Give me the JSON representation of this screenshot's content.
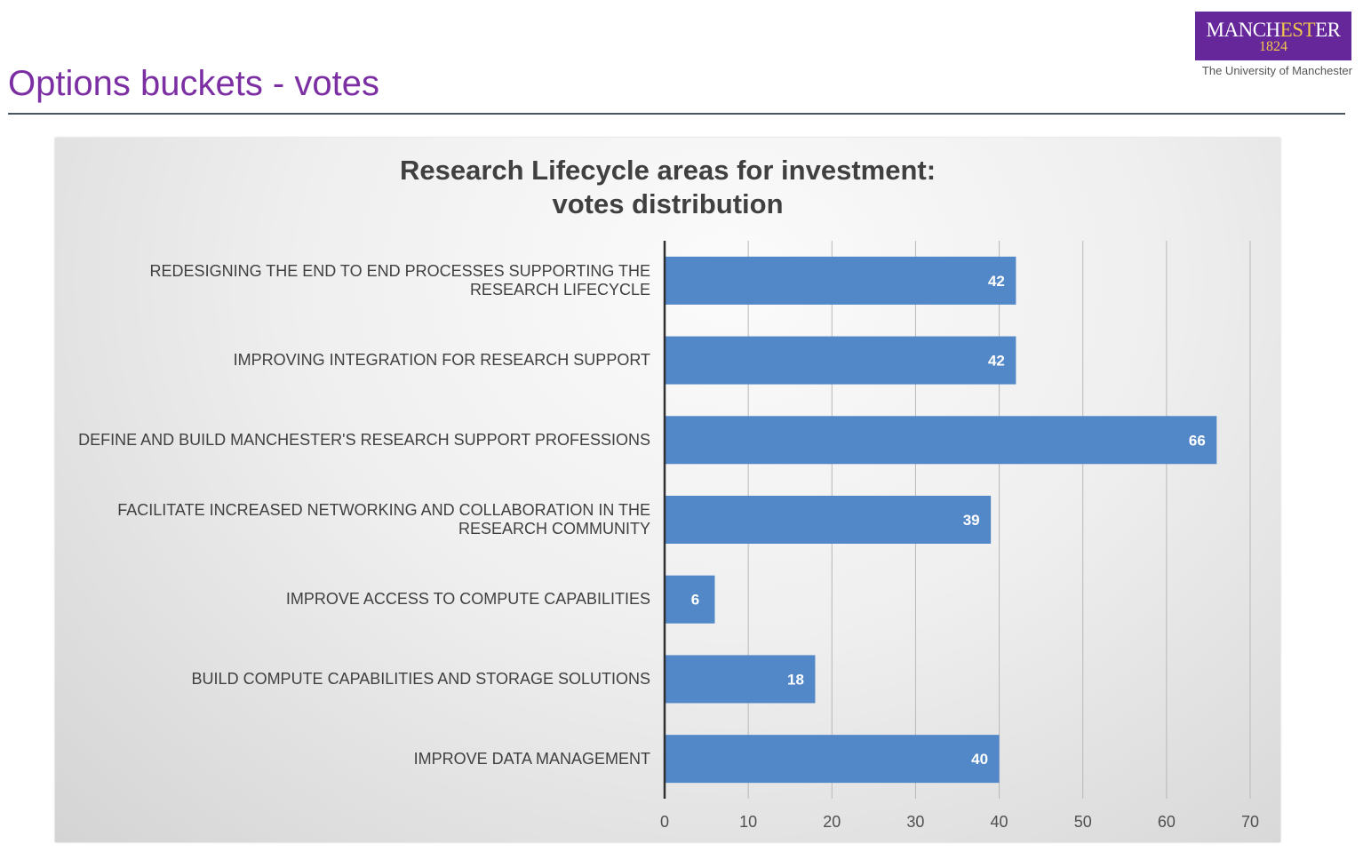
{
  "slide": {
    "title": "Options buckets - votes"
  },
  "logo": {
    "word_start": "MANCH",
    "word_accent": "EST",
    "word_end": "ER",
    "year": "1824",
    "subtitle": "The University of Manchester"
  },
  "colors": {
    "slide_title": "#7b2fa3",
    "bar": "#5288c8",
    "logo_purple": "#66279a",
    "logo_gold": "#f2c94c"
  },
  "chart_data": {
    "type": "bar",
    "orientation": "horizontal",
    "title": "Research Lifecycle areas for investment:",
    "subtitle": "votes distribution",
    "categories": [
      "REDESIGNING THE END TO END PROCESSES SUPPORTING THE RESEARCH LIFECYCLE",
      "IMPROVING INTEGRATION FOR RESEARCH SUPPORT",
      "DEFINE AND BUILD MANCHESTER'S RESEARCH SUPPORT PROFESSIONS",
      "FACILITATE INCREASED NETWORKING AND COLLABORATION IN THE RESEARCH COMMUNITY",
      "IMPROVE ACCESS TO COMPUTE CAPABILITIES",
      "BUILD COMPUTE CAPABILITIES AND STORAGE SOLUTIONS",
      "IMPROVE DATA MANAGEMENT"
    ],
    "values": [
      42,
      42,
      66,
      39,
      6,
      18,
      40
    ],
    "xlim": [
      0,
      70
    ],
    "xticks": [
      0,
      10,
      20,
      30,
      40,
      50,
      60,
      70
    ],
    "data_labels": true,
    "grid": true,
    "legend": "none"
  }
}
